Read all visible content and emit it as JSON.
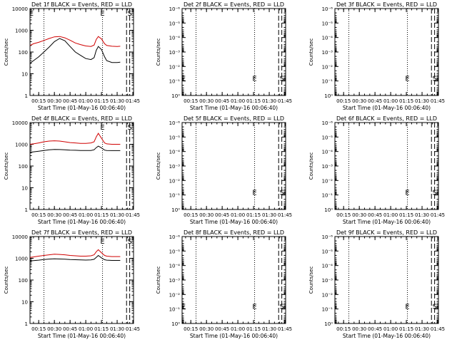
{
  "figure": {
    "xticks": [
      "00:15",
      "00:30",
      "00:45",
      "01:00",
      "01:15",
      "01:30",
      "01:45"
    ],
    "xlabel": "Start Time (01-May-16 00:06:40)",
    "marker_labels": {
      "E": "E",
      "S": "S"
    },
    "colors": {
      "events": "#000000",
      "lld": "#d00000",
      "axes": "#000000"
    }
  },
  "chart_data": [
    {
      "type": "line",
      "title": "Det 1f BLACK = Events, RED = LLD",
      "ylabel": "Counts/sec",
      "yscale": "log",
      "ylim": [
        1,
        10000
      ],
      "yticks": [
        "1",
        "10",
        "100",
        "1000",
        "10000"
      ],
      "ytick_values": [
        1,
        10,
        100,
        1000,
        10000
      ],
      "x": [
        "00:06:40",
        "00:10",
        "00:15",
        "00:20",
        "00:25",
        "00:30",
        "00:35",
        "00:40",
        "00:45",
        "00:50",
        "00:55",
        "01:00",
        "01:05",
        "01:08",
        "01:10",
        "01:12",
        "01:15",
        "01:18",
        "01:20",
        "01:25",
        "01:30",
        "01:33"
      ],
      "series": [
        {
          "name": "Events",
          "values": [
            30,
            40,
            60,
            100,
            170,
            300,
            420,
            330,
            180,
            100,
            70,
            50,
            45,
            55,
            120,
            180,
            130,
            60,
            40,
            33,
            33,
            34
          ]
        },
        {
          "name": "LLD",
          "values": [
            200,
            240,
            280,
            340,
            420,
            500,
            520,
            450,
            350,
            260,
            220,
            190,
            180,
            210,
            380,
            520,
            400,
            240,
            200,
            185,
            180,
            185
          ]
        }
      ],
      "vlines_dotted": [
        "00:20",
        "01:16"
      ],
      "vlines_dashed": [
        "01:39",
        "01:42"
      ],
      "markers": [
        {
          "label": "E",
          "x": "00:08",
          "y": 10000
        },
        {
          "label": "E",
          "x": "01:16",
          "y": 10000
        },
        {
          "label": "S",
          "x": "01:42",
          "y": 10000
        }
      ]
    },
    {
      "type": "line",
      "title": "Det 2f BLACK = Events, RED = LLD",
      "ylabel": "Counts/sec",
      "yscale": "log",
      "ylim": [
        1,
        1e-06
      ],
      "yticks": [
        "10⁰",
        "10⁻¹",
        "10⁻²",
        "10⁻³",
        "10⁻⁴",
        "10⁻⁵",
        "10⁻⁶"
      ],
      "ytick_values": [
        1,
        0.1,
        0.01,
        0.001,
        0.0001,
        1e-05,
        1e-06
      ],
      "series": [],
      "vlines_dotted": [
        "00:20",
        "01:16"
      ],
      "vlines_dashed": [
        "01:39",
        "01:42"
      ],
      "markers": [
        {
          "label": "E",
          "x": "00:08",
          "y": 0.12
        },
        {
          "label": "E",
          "x": "01:16",
          "y": 0.12
        },
        {
          "label": "S",
          "x": "01:42",
          "y": 0.12
        }
      ]
    },
    {
      "type": "line",
      "title": "Det 3f BLACK = Events, RED = LLD",
      "ylabel": "Counts/sec",
      "yscale": "log",
      "ylim": [
        1,
        1e-06
      ],
      "yticks": [
        "10⁰",
        "10⁻¹",
        "10⁻²",
        "10⁻³",
        "10⁻⁴",
        "10⁻⁵",
        "10⁻⁶"
      ],
      "ytick_values": [
        1,
        0.1,
        0.01,
        0.001,
        0.0001,
        1e-05,
        1e-06
      ],
      "series": [],
      "vlines_dotted": [
        "00:20",
        "01:16"
      ],
      "vlines_dashed": [
        "01:39",
        "01:42"
      ],
      "markers": [
        {
          "label": "E",
          "x": "01:16",
          "y": 0.12
        },
        {
          "label": "S",
          "x": "01:42",
          "y": 0.12
        }
      ]
    },
    {
      "type": "line",
      "title": "Det 4f BLACK = Events, RED = LLD",
      "ylabel": "Counts/sec",
      "yscale": "log",
      "ylim": [
        1,
        10000
      ],
      "yticks": [
        "1",
        "10",
        "100",
        "1000",
        "10000"
      ],
      "ytick_values": [
        1,
        10,
        100,
        1000,
        10000
      ],
      "x": [
        "00:06:40",
        "00:10",
        "00:15",
        "00:20",
        "00:25",
        "00:30",
        "00:35",
        "00:40",
        "00:45",
        "00:50",
        "00:55",
        "01:00",
        "01:05",
        "01:08",
        "01:10",
        "01:12",
        "01:15",
        "01:18",
        "01:20",
        "01:25",
        "01:30",
        "01:33"
      ],
      "series": [
        {
          "name": "Events",
          "values": [
            420,
            450,
            480,
            520,
            560,
            580,
            570,
            560,
            540,
            530,
            520,
            520,
            520,
            560,
            700,
            820,
            680,
            540,
            520,
            510,
            510,
            510
          ]
        },
        {
          "name": "LLD",
          "values": [
            1000,
            1050,
            1150,
            1300,
            1400,
            1450,
            1400,
            1300,
            1200,
            1150,
            1100,
            1100,
            1150,
            1300,
            2200,
            3200,
            1900,
            1150,
            1050,
            1000,
            1000,
            1000
          ]
        }
      ],
      "vlines_dotted": [
        "00:20",
        "01:16"
      ],
      "vlines_dashed": [
        "01:39",
        "01:42"
      ],
      "markers": [
        {
          "label": "E",
          "x": "01:16",
          "y": 10000
        },
        {
          "label": "S",
          "x": "01:42",
          "y": 10000
        }
      ]
    },
    {
      "type": "line",
      "title": "Det 5f BLACK = Events, RED = LLD",
      "ylabel": "Counts/sec",
      "yscale": "log",
      "ylim": [
        1,
        1e-06
      ],
      "yticks": [
        "10⁰",
        "10⁻¹",
        "10⁻²",
        "10⁻³",
        "10⁻⁴",
        "10⁻⁵",
        "10⁻⁶"
      ],
      "ytick_values": [
        1,
        0.1,
        0.01,
        0.001,
        0.0001,
        1e-05,
        1e-06
      ],
      "series": [],
      "vlines_dotted": [
        "00:20",
        "01:16"
      ],
      "vlines_dashed": [
        "01:39",
        "01:42"
      ],
      "markers": [
        {
          "label": "E",
          "x": "01:16",
          "y": 0.12
        },
        {
          "label": "S",
          "x": "01:42",
          "y": 0.12
        }
      ]
    },
    {
      "type": "line",
      "title": "Det 6f BLACK = Events, RED = LLD",
      "ylabel": "Counts/sec",
      "yscale": "log",
      "ylim": [
        1,
        1e-06
      ],
      "yticks": [
        "10⁰",
        "10⁻¹",
        "10⁻²",
        "10⁻³",
        "10⁻⁴",
        "10⁻⁵",
        "10⁻⁶"
      ],
      "ytick_values": [
        1,
        0.1,
        0.01,
        0.001,
        0.0001,
        1e-05,
        1e-06
      ],
      "series": [],
      "vlines_dotted": [
        "00:20",
        "01:16"
      ],
      "vlines_dashed": [
        "01:39",
        "01:42"
      ],
      "markers": [
        {
          "label": "E",
          "x": "01:16",
          "y": 0.12
        },
        {
          "label": "S",
          "x": "01:42",
          "y": 0.12
        }
      ]
    },
    {
      "type": "line",
      "title": "Det 7f BLACK = Events, RED = LLD",
      "ylabel": "Counts/sec",
      "yscale": "log",
      "ylim": [
        1,
        10000
      ],
      "yticks": [
        "1",
        "10",
        "100",
        "1000",
        "10000"
      ],
      "ytick_values": [
        1,
        10,
        100,
        1000,
        10000
      ],
      "x": [
        "00:06:40",
        "00:10",
        "00:15",
        "00:20",
        "00:25",
        "00:30",
        "00:35",
        "00:40",
        "00:45",
        "00:50",
        "00:55",
        "01:00",
        "01:05",
        "01:08",
        "01:10",
        "01:12",
        "01:15",
        "01:18",
        "01:20",
        "01:25",
        "01:30",
        "01:33"
      ],
      "series": [
        {
          "name": "Events",
          "values": [
            750,
            780,
            820,
            880,
            920,
            950,
            930,
            910,
            880,
            860,
            840,
            830,
            840,
            900,
            1100,
            1350,
            1050,
            860,
            820,
            800,
            800,
            800
          ]
        },
        {
          "name": "LLD",
          "values": [
            1100,
            1150,
            1250,
            1350,
            1450,
            1550,
            1500,
            1450,
            1350,
            1300,
            1250,
            1250,
            1300,
            1450,
            2000,
            2500,
            1800,
            1350,
            1250,
            1200,
            1200,
            1200
          ]
        }
      ],
      "vlines_dotted": [
        "00:20",
        "01:16"
      ],
      "vlines_dashed": [
        "01:39",
        "01:42"
      ],
      "markers": [
        {
          "label": "E",
          "x": "01:16",
          "y": 10000
        },
        {
          "label": "S",
          "x": "01:42",
          "y": 10000
        }
      ]
    },
    {
      "type": "line",
      "title": "Det 8f BLACK = Events, RED = LLD",
      "ylabel": "Counts/sec",
      "yscale": "log",
      "ylim": [
        1,
        1e-06
      ],
      "yticks": [
        "10⁰",
        "10⁻¹",
        "10⁻²",
        "10⁻³",
        "10⁻⁴",
        "10⁻⁵",
        "10⁻⁶"
      ],
      "ytick_values": [
        1,
        0.1,
        0.01,
        0.001,
        0.0001,
        1e-05,
        1e-06
      ],
      "series": [],
      "vlines_dotted": [
        "00:20",
        "01:16"
      ],
      "vlines_dashed": [
        "01:39",
        "01:42"
      ],
      "markers": [
        {
          "label": "E",
          "x": "00:08",
          "y": 0.12
        },
        {
          "label": "E",
          "x": "01:16",
          "y": 0.12
        },
        {
          "label": "S",
          "x": "01:42",
          "y": 0.12
        }
      ]
    },
    {
      "type": "line",
      "title": "Det 9f BLACK = Events, RED = LLD",
      "ylabel": "Counts/sec",
      "yscale": "log",
      "ylim": [
        1,
        1e-06
      ],
      "yticks": [
        "10⁰",
        "10⁻¹",
        "10⁻²",
        "10⁻³",
        "10⁻⁴",
        "10⁻⁵",
        "10⁻⁶"
      ],
      "ytick_values": [
        1,
        0.1,
        0.01,
        0.001,
        0.0001,
        1e-05,
        1e-06
      ],
      "series": [],
      "vlines_dotted": [
        "00:20",
        "01:16"
      ],
      "vlines_dashed": [
        "01:39",
        "01:42"
      ],
      "markers": [
        {
          "label": "E",
          "x": "01:16",
          "y": 0.12
        },
        {
          "label": "S",
          "x": "01:42",
          "y": 0.12
        }
      ]
    }
  ]
}
